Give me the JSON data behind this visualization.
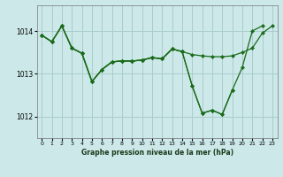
{
  "title": "Graphe pression niveau de la mer (hPa)",
  "background_color": "#cce8e8",
  "grid_color": "#aacccc",
  "line_color": "#1a6b1a",
  "marker_color": "#1a6b1a",
  "xlim": [
    -0.5,
    23.5
  ],
  "ylim": [
    1011.5,
    1014.6
  ],
  "yticks": [
    1012,
    1013,
    1014
  ],
  "xticks": [
    0,
    1,
    2,
    3,
    4,
    5,
    6,
    7,
    8,
    9,
    10,
    11,
    12,
    13,
    14,
    15,
    16,
    17,
    18,
    19,
    20,
    21,
    22,
    23
  ],
  "series1_x": [
    0,
    1,
    2,
    3,
    4,
    5,
    6,
    7,
    8,
    9,
    10,
    11,
    12,
    13,
    14,
    15,
    16,
    17,
    18,
    19,
    20,
    21,
    22,
    23
  ],
  "series1_y": [
    1013.9,
    1013.75,
    1014.12,
    1013.6,
    1013.48,
    1012.82,
    1013.1,
    1013.28,
    1013.3,
    1013.3,
    1013.32,
    1013.38,
    1013.35,
    1013.58,
    1013.52,
    1013.45,
    1013.42,
    1013.4,
    1013.4,
    1013.42,
    1013.5,
    1013.6,
    1013.95,
    1014.12
  ],
  "series2_x": [
    0,
    1,
    2,
    3,
    4,
    5,
    6,
    7,
    8,
    9,
    10,
    11,
    12,
    13,
    14,
    15,
    16,
    17,
    18,
    19,
    20,
    21,
    22
  ],
  "series2_y": [
    1013.9,
    1013.75,
    1014.12,
    1013.6,
    1013.48,
    1012.82,
    1013.1,
    1013.28,
    1013.3,
    1013.3,
    1013.32,
    1013.38,
    1013.35,
    1013.58,
    1013.52,
    1012.72,
    1012.08,
    1012.15,
    1012.05,
    1012.62,
    1013.15,
    1014.0,
    1014.12
  ],
  "series3_x": [
    0,
    1,
    2,
    3,
    4,
    5,
    6,
    7,
    8,
    9,
    10,
    11,
    12,
    13,
    14,
    15,
    16,
    17,
    18,
    19
  ],
  "series3_y": [
    1013.9,
    1013.75,
    1014.12,
    1013.6,
    1013.48,
    1012.82,
    1013.1,
    1013.28,
    1013.3,
    1013.3,
    1013.32,
    1013.38,
    1013.35,
    1013.58,
    1013.52,
    1012.72,
    1012.08,
    1012.15,
    1012.05,
    1012.62
  ]
}
